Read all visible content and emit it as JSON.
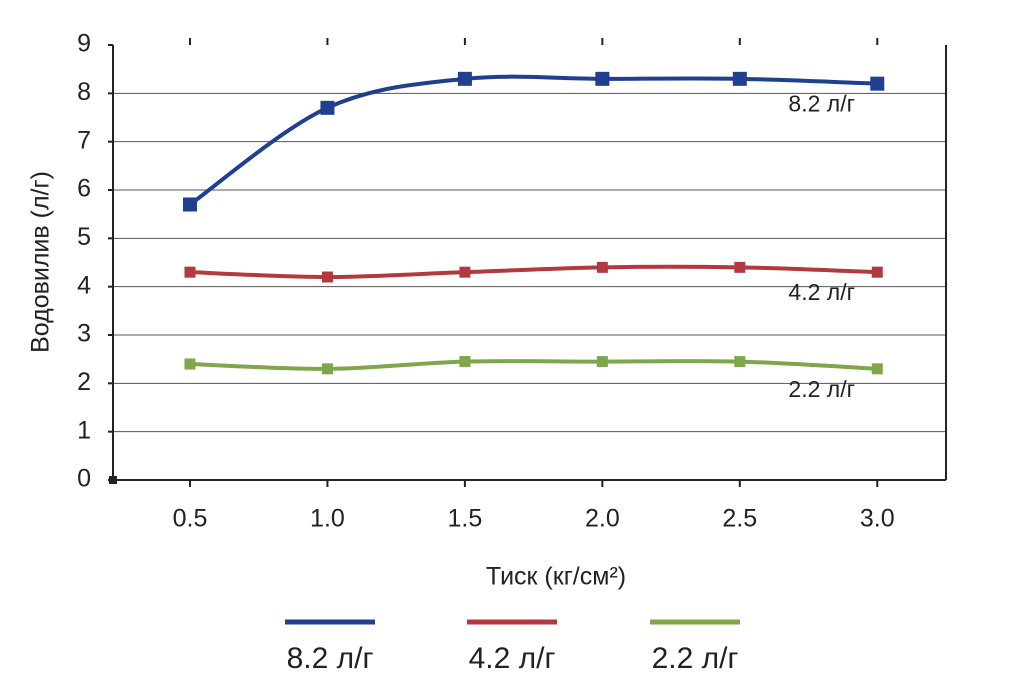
{
  "chart_data": {
    "type": "line",
    "x_label": "Тиск  (кг/см²)",
    "y_label": "Водовилив (л/г)",
    "x": [
      0.5,
      1,
      1.5,
      2,
      2.5,
      3
    ],
    "xlim": [
      0.22,
      3.25
    ],
    "xticks": [
      0.5,
      {
        "value": 1,
        "label": "1.0"
      },
      1.5,
      {
        "value": 2,
        "label": "2.0"
      },
      2.5,
      {
        "value": 3,
        "label": "3.0"
      }
    ],
    "ylim": [
      0,
      9
    ],
    "yticks": [
      0,
      1,
      2,
      3,
      4,
      5,
      6,
      7,
      8,
      9
    ],
    "grid": true,
    "legend": "bottom",
    "series": [
      {
        "name": "8.2 л/г",
        "color": "#1f3f8f",
        "values": [
          5.7,
          7.7,
          8.3,
          8.3,
          8.3,
          8.2
        ]
      },
      {
        "name": "4.2 л/г",
        "color": "#b23a3e",
        "values": [
          4.3,
          4.2,
          4.3,
          4.4,
          4.4,
          4.3
        ]
      },
      {
        "name": "2.2 л/г",
        "color": "#7fa64a",
        "values": [
          2.4,
          2.3,
          2.45,
          2.45,
          2.45,
          2.3
        ]
      }
    ]
  }
}
